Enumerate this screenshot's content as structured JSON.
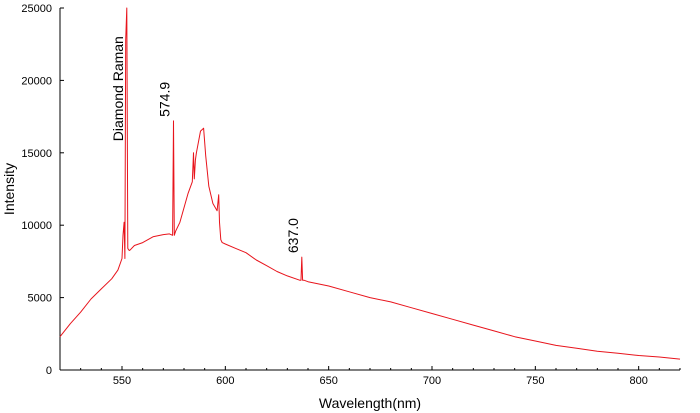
{
  "chart_data": {
    "type": "line",
    "title": "",
    "xlabel": "Wavelength(nm)",
    "ylabel": "Intensity",
    "xlim": [
      520,
      820
    ],
    "ylim": [
      0,
      25000
    ],
    "x_ticks": [
      550,
      600,
      650,
      700,
      750,
      800
    ],
    "y_ticks": [
      0,
      5000,
      10000,
      15000,
      20000,
      25000
    ],
    "grid": false,
    "line_color": "#e8141c",
    "series": [
      {
        "x": [
          520,
          525,
          530,
          535,
          540,
          545,
          548,
          550,
          550.5,
          551,
          551.4,
          551.8,
          552.3,
          552.8,
          553.2,
          553.6,
          554,
          556,
          560,
          565,
          570,
          573,
          574.5,
          574.9,
          575.3,
          576,
          578,
          580,
          582,
          584,
          584.6,
          585,
          585.5,
          586,
          588,
          589.5,
          590.5,
          592,
          594,
          596,
          596.8,
          597.2,
          597.8,
          598.5,
          600,
          605,
          610,
          615,
          620,
          625,
          630,
          636,
          636.6,
          637,
          637.4,
          638,
          640,
          650,
          660,
          670,
          680,
          690,
          700,
          710,
          720,
          730,
          740,
          750,
          760,
          770,
          780,
          790,
          800,
          810,
          820
        ],
        "y": [
          2300,
          3200,
          4000,
          4900,
          5600,
          6300,
          6900,
          7700,
          9300,
          10200,
          7700,
          22800,
          25000,
          8400,
          8300,
          8250,
          8300,
          8600,
          8800,
          9200,
          9350,
          9400,
          9300,
          17200,
          9300,
          9600,
          10200,
          11200,
          12200,
          13000,
          15000,
          13200,
          14500,
          15000,
          16500,
          16700,
          14800,
          12700,
          11500,
          11000,
          12100,
          10200,
          9000,
          8800,
          8700,
          8400,
          8100,
          7600,
          7200,
          6800,
          6500,
          6200,
          6200,
          7800,
          6200,
          6200,
          6100,
          5800,
          5400,
          5000,
          4700,
          4300,
          3900,
          3500,
          3100,
          2700,
          2300,
          2000,
          1700,
          1500,
          1300,
          1150,
          1000,
          900,
          750
        ]
      }
    ],
    "annotations": [
      {
        "text": "Diamond Raman",
        "x": 552.3,
        "y": 25000,
        "rotate": -90
      },
      {
        "text": "574.9",
        "x": 574.9,
        "y": 17200,
        "rotate": -90
      },
      {
        "text": "637.0",
        "x": 637.0,
        "y": 7800,
        "rotate": -90
      }
    ]
  }
}
